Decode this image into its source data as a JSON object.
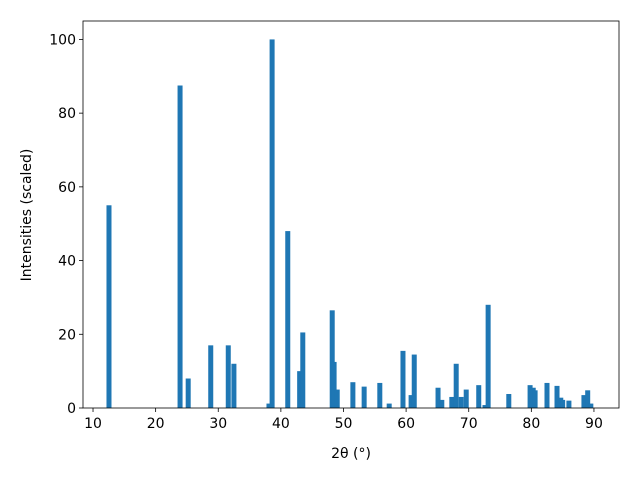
{
  "chart_data": {
    "type": "bar",
    "xlabel": "2θ (°)",
    "ylabel": "Intensities (scaled)",
    "x": [
      12.55,
      23.9,
      25.2,
      28.8,
      31.6,
      32.5,
      38.1,
      38.6,
      41.1,
      43.0,
      43.5,
      48.2,
      48.5,
      49.0,
      51.5,
      53.3,
      55.8,
      57.3,
      59.5,
      60.8,
      61.3,
      65.1,
      65.7,
      67.3,
      68.0,
      68.8,
      69.6,
      71.6,
      72.6,
      73.1,
      76.4,
      79.8,
      80.3,
      80.6,
      82.5,
      84.1,
      84.7,
      85.0,
      86.0,
      88.4,
      89.0,
      89.5
    ],
    "values": [
      55,
      87.5,
      8,
      17,
      17,
      12,
      1.2,
      100,
      48,
      10,
      20.5,
      26.5,
      12.5,
      5,
      7,
      5.8,
      6.8,
      1.2,
      15.5,
      3.5,
      14.5,
      5.5,
      2.2,
      3,
      12,
      3,
      5,
      6.2,
      0.8,
      28,
      3.8,
      6.2,
      5.5,
      4.8,
      6.8,
      6,
      2.8,
      2.2,
      2,
      3.5,
      4.8,
      1.2
    ],
    "color": "#1f77b4",
    "xlim": [
      8.4,
      94
    ],
    "xticks": [
      10,
      20,
      30,
      40,
      50,
      60,
      70,
      80,
      90
    ],
    "ylim": [
      0,
      105
    ],
    "yticks": [
      0,
      20,
      40,
      60,
      80,
      100
    ]
  }
}
